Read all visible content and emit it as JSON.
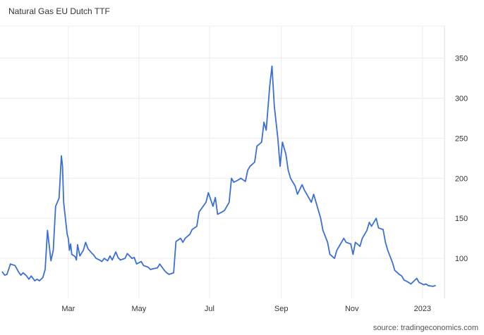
{
  "chart_data": {
    "type": "line",
    "title": "Natural Gas EU Dutch TTF",
    "source": "source: tradingeconomics.com",
    "x_tick_labels": [
      "Mar",
      "May",
      "Jul",
      "Sep",
      "Nov",
      "2023"
    ],
    "y_ticks": [
      100,
      150,
      200,
      250,
      300,
      350
    ],
    "ylim": [
      50,
      390
    ],
    "grid": true,
    "line_color": "#3a6fd8",
    "series": [
      {
        "x": [
          "2022-01-03",
          "2022-01-05",
          "2022-01-07",
          "2022-01-10",
          "2022-01-12",
          "2022-01-14",
          "2022-01-17",
          "2022-01-19",
          "2022-01-21",
          "2022-01-24",
          "2022-01-26",
          "2022-01-28",
          "2022-01-31",
          "2022-02-02",
          "2022-02-04",
          "2022-02-07",
          "2022-02-09",
          "2022-02-11",
          "2022-02-14",
          "2022-02-16",
          "2022-02-18",
          "2022-02-21",
          "2022-02-23",
          "2022-02-24",
          "2022-02-25",
          "2022-02-28",
          "2022-03-01",
          "2022-03-02",
          "2022-03-03",
          "2022-03-04",
          "2022-03-07",
          "2022-03-08",
          "2022-03-09",
          "2022-03-11",
          "2022-03-14",
          "2022-03-16",
          "2022-03-18",
          "2022-03-21",
          "2022-03-23",
          "2022-03-25",
          "2022-03-28",
          "2022-03-30",
          "2022-04-01",
          "2022-04-04",
          "2022-04-06",
          "2022-04-08",
          "2022-04-11",
          "2022-04-13",
          "2022-04-15",
          "2022-04-19",
          "2022-04-21",
          "2022-04-25",
          "2022-04-27",
          "2022-04-29",
          "2022-05-03",
          "2022-05-05",
          "2022-05-09",
          "2022-05-11",
          "2022-05-13",
          "2022-05-17",
          "2022-05-19",
          "2022-05-23",
          "2022-05-25",
          "2022-05-27",
          "2022-05-31",
          "2022-06-02",
          "2022-06-06",
          "2022-06-08",
          "2022-06-10",
          "2022-06-14",
          "2022-06-16",
          "2022-06-20",
          "2022-06-22",
          "2022-06-24",
          "2022-06-28",
          "2022-06-30",
          "2022-07-04",
          "2022-07-06",
          "2022-07-08",
          "2022-07-12",
          "2022-07-14",
          "2022-07-18",
          "2022-07-20",
          "2022-07-22",
          "2022-07-26",
          "2022-07-28",
          "2022-08-01",
          "2022-08-03",
          "2022-08-05",
          "2022-08-09",
          "2022-08-11",
          "2022-08-15",
          "2022-08-17",
          "2022-08-19",
          "2022-08-22",
          "2022-08-24",
          "2022-08-26",
          "2022-08-29",
          "2022-08-31",
          "2022-09-02",
          "2022-09-05",
          "2022-09-07",
          "2022-09-09",
          "2022-09-13",
          "2022-09-15",
          "2022-09-19",
          "2022-09-21",
          "2022-09-23",
          "2022-09-27",
          "2022-09-29",
          "2022-10-03",
          "2022-10-05",
          "2022-10-07",
          "2022-10-11",
          "2022-10-13",
          "2022-10-17",
          "2022-10-19",
          "2022-10-21",
          "2022-10-25",
          "2022-10-27",
          "2022-10-31",
          "2022-11-02",
          "2022-11-04",
          "2022-11-08",
          "2022-11-10",
          "2022-11-14",
          "2022-11-16",
          "2022-11-18",
          "2022-11-22",
          "2022-11-24",
          "2022-11-28",
          "2022-11-30",
          "2022-12-02",
          "2022-12-06",
          "2022-12-08",
          "2022-12-12",
          "2022-12-14",
          "2022-12-16",
          "2022-12-20",
          "2022-12-22",
          "2022-12-27",
          "2022-12-29",
          "2023-01-02",
          "2023-01-04",
          "2023-01-06",
          "2023-01-10",
          "2023-01-12"
        ],
        "values": [
          83,
          79,
          80,
          93,
          92,
          91,
          83,
          79,
          82,
          78,
          74,
          78,
          72,
          74,
          72,
          76,
          86,
          135,
          97,
          110,
          165,
          175,
          228,
          215,
          170,
          130,
          125,
          110,
          118,
          105,
          102,
          98,
          117,
          103,
          110,
          120,
          112,
          107,
          104,
          100,
          98,
          96,
          100,
          97,
          103,
          98,
          108,
          101,
          98,
          100,
          106,
          100,
          101,
          93,
          96,
          91,
          89,
          86,
          87,
          88,
          93,
          85,
          82,
          80,
          82,
          121,
          125,
          120,
          125,
          130,
          136,
          140,
          158,
          162,
          170,
          182,
          165,
          176,
          155,
          158,
          160,
          170,
          200,
          195,
          198,
          200,
          196,
          210,
          215,
          220,
          240,
          245,
          270,
          260,
          315,
          340,
          290,
          250,
          215,
          245,
          230,
          210,
          200,
          190,
          180,
          192,
          185,
          180,
          170,
          180,
          160,
          150,
          135,
          120,
          105,
          100,
          110,
          115,
          125,
          120,
          118,
          105,
          120,
          115,
          125,
          135,
          145,
          140,
          150,
          138,
          136,
          120,
          110,
          95,
          85,
          80,
          78,
          73,
          70,
          68,
          75,
          70,
          67,
          68,
          66,
          65,
          66
        ]
      }
    ]
  }
}
